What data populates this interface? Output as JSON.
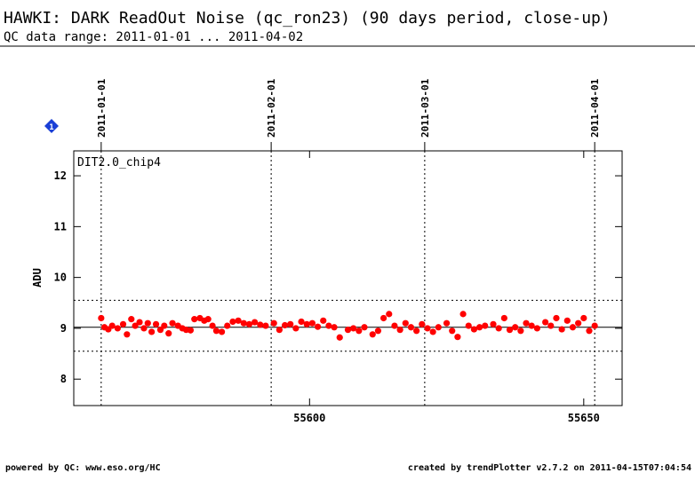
{
  "chart_data": {
    "type": "scatter",
    "title": "HAWKI: DARK ReadOut Noise (qc_ron23) (90 days period, close-up)",
    "subtitle": "QC data range: 2011-01-01 ... 2011-04-02",
    "panel_label": "DIT2.0_chip4",
    "badge": "1",
    "y_label": "ADU",
    "footer_left": "powered by QC: www.eso.org/HC",
    "footer_right": "created by trendPlotter v2.7.2 on 2011-04-15T07:04:54",
    "color": "#ff0000",
    "xlim": [
      55557,
      55657
    ],
    "ylim": [
      7.48,
      12.49
    ],
    "xticks": [
      55600,
      55650
    ],
    "yticks": [
      8,
      9,
      10,
      11,
      12
    ],
    "date_ticks": [
      {
        "value": 55562,
        "label": "2011-01-01"
      },
      {
        "value": 55593,
        "label": "2011-02-01"
      },
      {
        "value": 55621,
        "label": "2011-03-01"
      },
      {
        "value": 55652,
        "label": "2011-04-01"
      }
    ],
    "mean_line": 9.02,
    "limit_lines": [
      8.55,
      9.55
    ],
    "x": [
      55562,
      55562.6,
      55563.3,
      55564,
      55565,
      55566,
      55566.7,
      55567.5,
      55568.2,
      55569,
      55569.8,
      55570.5,
      55571.2,
      55572,
      55572.8,
      55573.5,
      55574.3,
      55575,
      55576,
      55576.8,
      55577.5,
      55578.3,
      55579,
      55580,
      55580.8,
      55581.5,
      55582.3,
      55583,
      55584,
      55585,
      55586,
      55587,
      55588,
      55589,
      55590,
      55591,
      55592,
      55593.5,
      55594.5,
      55595.5,
      55596.5,
      55597.5,
      55598.5,
      55599.5,
      55600.5,
      55601.5,
      55602.5,
      55603.5,
      55604.5,
      55605.5,
      55607,
      55608,
      55609,
      55610,
      55611.5,
      55612.5,
      55613.5,
      55614.5,
      55615.5,
      55616.5,
      55617.5,
      55618.5,
      55619.5,
      55620.5,
      55621.5,
      55622.5,
      55623.5,
      55625,
      55626,
      55627,
      55628,
      55629,
      55630,
      55631,
      55632,
      55633.5,
      55634.5,
      55635.5,
      55636.5,
      55637.5,
      55638.5,
      55639.5,
      55640.5,
      55641.5,
      55643,
      55644,
      55645,
      55646,
      55647,
      55648,
      55649,
      55650,
      55651,
      55652
    ],
    "values": [
      9.2,
      9.02,
      8.98,
      9.05,
      9.0,
      9.08,
      8.88,
      9.18,
      9.05,
      9.12,
      9.0,
      9.1,
      8.93,
      9.08,
      8.97,
      9.05,
      8.9,
      9.1,
      9.05,
      9.0,
      8.97,
      8.96,
      9.18,
      9.2,
      9.15,
      9.18,
      9.05,
      8.95,
      8.93,
      9.05,
      9.13,
      9.15,
      9.1,
      9.08,
      9.12,
      9.07,
      9.05,
      9.1,
      8.97,
      9.06,
      9.08,
      9.0,
      9.13,
      9.08,
      9.1,
      9.03,
      9.15,
      9.05,
      9.02,
      8.82,
      8.97,
      9.0,
      8.95,
      9.02,
      8.88,
      8.95,
      9.2,
      9.28,
      9.05,
      8.97,
      9.1,
      9.02,
      8.95,
      9.08,
      9.0,
      8.93,
      9.02,
      9.1,
      8.95,
      8.83,
      9.28,
      9.05,
      8.98,
      9.02,
      9.05,
      9.08,
      9.0,
      9.2,
      8.97,
      9.02,
      8.95,
      9.1,
      9.05,
      9.0,
      9.12,
      9.05,
      9.2,
      8.98,
      9.15,
      9.02,
      9.1,
      9.2,
      8.95,
      9.05
    ]
  }
}
